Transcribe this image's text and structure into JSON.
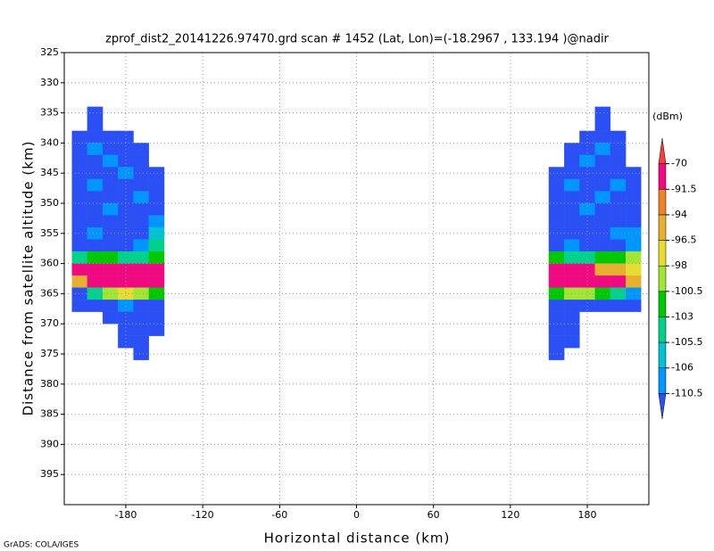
{
  "chart_data": {
    "type": "heatmap",
    "title": "zprof_dist2_20141226.97470.grd  scan # 1452  (Lat, Lon)=(-18.2967 , 133.194 )@nadir",
    "x_label": "Horizontal distance (km)",
    "y_label": "Distance from satellite altitude (km)",
    "footer": "GrADS: COLA/IGES",
    "colorbar_label": "(dBm)",
    "xlim": [
      -228,
      228
    ],
    "xticks": [
      -180,
      -120,
      -60,
      0,
      60,
      120,
      180
    ],
    "ylim": [
      400,
      325
    ],
    "yticks": [
      325,
      330,
      335,
      340,
      345,
      350,
      355,
      360,
      365,
      370,
      375,
      380,
      385,
      390,
      395
    ],
    "grid": true,
    "levels": [
      -110.5,
      -106,
      -105.5,
      -103,
      -100.5,
      -98,
      -96.5,
      -94,
      -91.5,
      -70
    ],
    "colors": [
      "#2a50f5",
      "#0096ff",
      "#00c3d2",
      "#00d28c",
      "#00c800",
      "#a0e632",
      "#e6dc32",
      "#e6af2d",
      "#f08228",
      "#f00a82",
      "#fa3c3c"
    ],
    "x": [
      -216,
      -204,
      -192,
      -180,
      -168,
      -156,
      156,
      168,
      180,
      192,
      204,
      216
    ],
    "y": [
      335,
      337,
      339,
      341,
      343,
      345,
      347,
      349,
      351,
      353,
      355,
      357,
      359,
      361,
      363,
      365,
      367,
      369,
      371,
      373,
      375
    ],
    "z": [
      [
        null,
        -112,
        null,
        null,
        null,
        null,
        null,
        null,
        null,
        -112,
        null,
        null
      ],
      [
        null,
        -112,
        null,
        null,
        null,
        null,
        null,
        null,
        null,
        -112,
        null,
        null
      ],
      [
        -112,
        -112,
        -112,
        -112,
        null,
        null,
        null,
        null,
        -112,
        -112,
        -112,
        null
      ],
      [
        -112,
        -108,
        -112,
        -112,
        -112,
        null,
        null,
        -112,
        -112,
        -108,
        -112,
        null
      ],
      [
        -112,
        -112,
        -108,
        -112,
        -112,
        null,
        null,
        -112,
        -108,
        -112,
        -112,
        null
      ],
      [
        -112,
        -112,
        -112,
        -108,
        -112,
        -112,
        -112,
        -112,
        -112,
        -112,
        -112,
        -112
      ],
      [
        -112,
        -108,
        -112,
        -112,
        -112,
        -112,
        -112,
        -108,
        -112,
        -112,
        -108,
        -112
      ],
      [
        -112,
        -112,
        -112,
        -112,
        -108,
        -112,
        -112,
        -112,
        -112,
        -108,
        -112,
        -112
      ],
      [
        -112,
        -112,
        -108,
        -112,
        -112,
        -112,
        -112,
        -112,
        -108,
        -112,
        -112,
        -112
      ],
      [
        -112,
        -112,
        -112,
        -112,
        -112,
        -108,
        -112,
        -112,
        -112,
        -112,
        -112,
        -112
      ],
      [
        -112,
        -108,
        -112,
        -112,
        -112,
        -106,
        -112,
        -112,
        -112,
        -112,
        -108,
        -108
      ],
      [
        -112,
        -112,
        -112,
        -112,
        -108,
        -104,
        -112,
        -108,
        -112,
        -112,
        -112,
        -108
      ],
      [
        -104,
        -101,
        -101,
        -104,
        -104,
        -101,
        -101,
        -104,
        -104,
        -101,
        -101,
        -99
      ],
      [
        -85,
        -85,
        -85,
        -85,
        -85,
        -85,
        -85,
        -85,
        -85,
        -95,
        -95,
        -97
      ],
      [
        -95,
        -85,
        -85,
        -85,
        -85,
        -85,
        -85,
        -85,
        -85,
        -85,
        -85,
        -95
      ],
      [
        -112,
        -104,
        -99,
        -97,
        -99,
        -101,
        -101,
        -99,
        -99,
        -101,
        -104,
        -108
      ],
      [
        -112,
        -112,
        -112,
        -108,
        -112,
        -112,
        -112,
        -112,
        -112,
        -112,
        -112,
        -112
      ],
      [
        null,
        null,
        -112,
        -112,
        -112,
        -112,
        -112,
        -112,
        null,
        null,
        null,
        null
      ],
      [
        null,
        null,
        null,
        -112,
        -112,
        -112,
        -112,
        -112,
        null,
        null,
        null,
        null
      ],
      [
        null,
        null,
        null,
        -112,
        -112,
        null,
        -112,
        -112,
        null,
        null,
        null,
        null
      ],
      [
        null,
        null,
        null,
        null,
        -112,
        null,
        -112,
        null,
        null,
        null,
        null,
        null
      ]
    ]
  }
}
